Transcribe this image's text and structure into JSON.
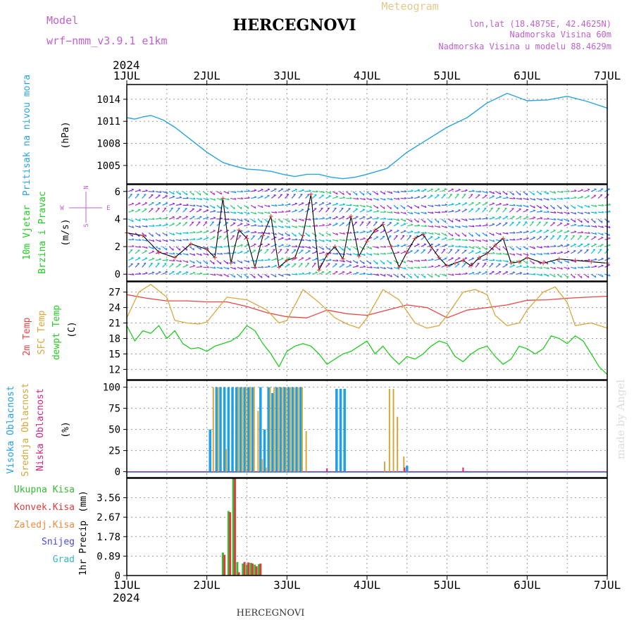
{
  "header": {
    "model_label": "Model",
    "model_name": "wrf−nmm_v3.9.1  e1km",
    "title": "HERCEGNOVI",
    "meteogram_label": "Meteogram",
    "lonlat": "lon,lat (18.4875E, 42.4625N)",
    "elevation": "Nadmorska Visina 60m",
    "model_elevation": "Nadmorska Visina u modelu 88.4629m",
    "footer_station": "HERCEGNOVI",
    "credit": "made by Angel"
  },
  "colors": {
    "pressure": "#2aa3e0",
    "temp2m": "#e84545",
    "sfc": "#dba63c",
    "dewpt": "#22cc22",
    "high_cloud": "#1e9fe6",
    "mid_cloud": "#d6a73a",
    "low_cloud": "#d02580",
    "total_precip": "#33bb33",
    "conv_precip": "#e03c3c",
    "frozen": "#ef8a3c",
    "snow": "#4a4ae0",
    "grad": "#33bbbb",
    "meta_text": "#c060d0"
  },
  "chart_data": [
    {
      "type": "line",
      "panel": "pressure",
      "year": "2024",
      "x_ticks": [
        "1JUL",
        "2JUL",
        "3JUL",
        "4JUL",
        "5JUL",
        "6JUL",
        "7JUL"
      ],
      "ylabel_title": "Pritisak na nivou mora",
      "yunit": "(hPa)",
      "ylim": [
        1002.5,
        1016
      ],
      "yticks": [
        1005,
        1008,
        1011,
        1014
      ],
      "series": [
        {
          "x": [
            0,
            0.1,
            0.2,
            0.3,
            0.45,
            0.6,
            0.8,
            1,
            1.2,
            1.35,
            1.5,
            1.65,
            1.8,
            1.95,
            2.1,
            2.25,
            2.4,
            2.55,
            2.7,
            2.85,
            3,
            3.25,
            3.5,
            3.75,
            4,
            4.25,
            4.5,
            4.75,
            5,
            5.25,
            5.5,
            5.75,
            6
          ],
          "values": [
            1011.5,
            1011.3,
            1011.6,
            1011.8,
            1011.2,
            1010.2,
            1008.5,
            1006.8,
            1005.4,
            1004.9,
            1004.5,
            1004.4,
            1004.2,
            1003.8,
            1003.5,
            1003.8,
            1003.8,
            1003.4,
            1003.2,
            1003.4,
            1003.8,
            1004.6,
            1006.8,
            1008.5,
            1010.2,
            1011.5,
            1013.5,
            1014.8,
            1013.8,
            1013.9,
            1014.4,
            1013.7,
            1012.8
          ]
        }
      ]
    },
    {
      "type": "line",
      "panel": "wind",
      "ylabel_title": "10m Vjetar",
      "ylabel_sub": "Brzina i Pravac",
      "yunit": "(m/s)",
      "compass": [
        "N",
        "S",
        "W",
        "E"
      ],
      "ylim": [
        -0.5,
        6.5
      ],
      "yticks": [
        0,
        2,
        4,
        6
      ],
      "series": [
        {
          "name": "speed",
          "x": [
            0,
            0.2,
            0.4,
            0.6,
            0.8,
            1,
            1.1,
            1.2,
            1.3,
            1.4,
            1.5,
            1.6,
            1.7,
            1.8,
            1.9,
            2,
            2.1,
            2.2,
            2.3,
            2.4,
            2.5,
            2.6,
            2.7,
            2.8,
            2.9,
            3,
            3.1,
            3.2,
            3.3,
            3.4,
            3.5,
            3.6,
            3.7,
            3.8,
            3.9,
            4,
            4.1,
            4.2,
            4.3,
            4.4,
            4.5,
            4.6,
            4.7,
            4.8,
            4.9,
            5,
            5.2,
            5.4,
            5.6,
            5.8,
            6
          ],
          "values": [
            3,
            2.8,
            1.6,
            1.2,
            2.2,
            1.8,
            1.2,
            5.5,
            0.8,
            3.2,
            2.6,
            0.5,
            2.8,
            4.2,
            0.5,
            1.0,
            1.2,
            2.8,
            5.8,
            0.3,
            1.4,
            2.0,
            1.1,
            4.2,
            1.3,
            2.4,
            3.2,
            3.6,
            2.0,
            0.5,
            1.6,
            2.6,
            2.9,
            2.0,
            1.2,
            0.6,
            0.8,
            1.0,
            0.6,
            1.2,
            1.5,
            2.1,
            2.6,
            0.8,
            0.9,
            1.2,
            0.8,
            1.1,
            1.0,
            0.9,
            0.8
          ]
        }
      ]
    },
    {
      "type": "line",
      "panel": "temperature",
      "ylabels": [
        "2m Temp",
        "SFC Temp",
        "dewpt Temp"
      ],
      "yunit": "(C)",
      "ylim": [
        10,
        29
      ],
      "yticks": [
        12,
        15,
        18,
        21,
        24,
        27
      ],
      "series": [
        {
          "name": "2m Temp",
          "x": [
            0,
            0.25,
            0.5,
            0.75,
            1,
            1.25,
            1.5,
            1.75,
            2,
            2.25,
            2.5,
            2.75,
            3,
            3.25,
            3.5,
            3.75,
            4,
            4.25,
            4.5,
            4.75,
            5,
            5.25,
            5.5,
            5.75,
            6
          ],
          "values": [
            26.5,
            25.8,
            25.3,
            25.3,
            25.1,
            25.1,
            24.2,
            23.0,
            22.2,
            22.0,
            23.5,
            22.8,
            22.5,
            23.5,
            24.5,
            24.0,
            22.0,
            23.5,
            24.0,
            24.5,
            25.4,
            25.5,
            25.8,
            26.0,
            26.2
          ]
        },
        {
          "name": "SFC Temp",
          "x": [
            0,
            0.15,
            0.3,
            0.5,
            0.6,
            0.75,
            0.9,
            1,
            1.25,
            1.5,
            1.75,
            1.9,
            2,
            2.2,
            2.4,
            2.6,
            2.75,
            2.9,
            3,
            3.2,
            3.4,
            3.6,
            3.75,
            3.9,
            4,
            4.2,
            4.35,
            4.5,
            4.6,
            4.75,
            4.9,
            5,
            5.2,
            5.35,
            5.5,
            5.6,
            5.8,
            6
          ],
          "values": [
            22.0,
            27.0,
            28.5,
            26.0,
            21.5,
            21.0,
            20.8,
            21.2,
            26.0,
            25.5,
            23.5,
            21.0,
            21.5,
            27.5,
            25.0,
            22.0,
            20.8,
            20.0,
            22.0,
            27.5,
            25.5,
            21.0,
            20.0,
            20.5,
            22.5,
            27.0,
            27.5,
            26.5,
            22.5,
            20.5,
            21.0,
            23.5,
            27.0,
            28.0,
            25.0,
            20.5,
            21.0,
            20.0
          ]
        },
        {
          "name": "dewpt Temp",
          "x": [
            0,
            0.1,
            0.2,
            0.3,
            0.4,
            0.5,
            0.6,
            0.7,
            0.8,
            0.9,
            1,
            1.1,
            1.2,
            1.3,
            1.4,
            1.5,
            1.6,
            1.7,
            1.8,
            1.9,
            2,
            2.1,
            2.2,
            2.3,
            2.4,
            2.5,
            2.6,
            2.7,
            2.8,
            2.9,
            3,
            3.1,
            3.2,
            3.3,
            3.4,
            3.5,
            3.6,
            3.7,
            3.8,
            3.9,
            4,
            4.1,
            4.2,
            4.3,
            4.4,
            4.5,
            4.6,
            4.7,
            4.8,
            4.9,
            5,
            5.1,
            5.2,
            5.3,
            5.4,
            5.5,
            5.6,
            5.7,
            5.8,
            5.9,
            6
          ],
          "values": [
            20.5,
            17.5,
            19.5,
            19.0,
            20.5,
            18.0,
            19.5,
            17.0,
            16.0,
            16.2,
            15.5,
            16.5,
            17.0,
            17.5,
            18.5,
            20.5,
            19.5,
            17.0,
            15.0,
            12.5,
            15.5,
            16.5,
            17.0,
            16.5,
            15.0,
            13.0,
            14.0,
            15.0,
            15.5,
            16.5,
            17.5,
            15.0,
            16.5,
            14.5,
            13.0,
            14.5,
            14.0,
            15.0,
            16.5,
            17.5,
            17.0,
            14.5,
            13.5,
            15.0,
            16.0,
            16.5,
            14.5,
            13.0,
            14.0,
            16.5,
            16.0,
            15.0,
            16.0,
            18.5,
            18.0,
            17.0,
            18.5,
            17.5,
            15.0,
            12.5,
            11.0
          ]
        }
      ]
    },
    {
      "type": "bar",
      "panel": "cloud",
      "ylabels": [
        "Visoka Oblacnost",
        "Srednja Oblacnost",
        "Niska Oblacnost"
      ],
      "yunit": "(%)",
      "ylim": [
        -7,
        108
      ],
      "yticks": [
        0,
        25,
        50,
        75,
        100
      ],
      "series": [
        {
          "name": "Visoka Oblacnost",
          "x": [
            1.04,
            1.12,
            1.17,
            1.22,
            1.27,
            1.32,
            1.37,
            1.42,
            1.47,
            1.52,
            1.57,
            1.67,
            1.72,
            1.77,
            1.82,
            1.87,
            1.92,
            1.97,
            2.02,
            2.07,
            2.12,
            2.17,
            2.62,
            2.67,
            2.72,
            3.5
          ],
          "values": [
            50,
            100,
            100,
            100,
            100,
            100,
            100,
            100,
            100,
            100,
            100,
            100,
            50,
            100,
            93,
            100,
            100,
            100,
            100,
            100,
            100,
            100,
            98,
            98,
            98,
            7
          ]
        },
        {
          "name": "Srednja Oblacnost",
          "x": [
            1.08,
            1.14,
            1.24,
            1.39,
            1.44,
            1.49,
            1.54,
            1.59,
            1.64,
            1.69,
            1.74,
            1.79,
            1.84,
            1.89,
            1.94,
            1.99,
            2.04,
            2.09,
            2.14,
            2.19,
            2.24,
            3.22,
            3.28,
            3.33,
            3.38,
            3.46
          ],
          "values": [
            100,
            100,
            27,
            100,
            100,
            100,
            100,
            100,
            72,
            15,
            5,
            100,
            100,
            100,
            100,
            100,
            100,
            100,
            100,
            100,
            48,
            12,
            98,
            98,
            65,
            18
          ]
        },
        {
          "name": "Niska Oblacnost",
          "x": [
            2.5,
            3.47,
            4.2
          ],
          "values": [
            4,
            5,
            5
          ]
        }
      ]
    },
    {
      "type": "bar",
      "panel": "precip",
      "ylabels": [
        "Ukupna Kisa",
        "Konvek.Kisa",
        "Zaledj.Kisa",
        "Snijeg",
        "Grad"
      ],
      "ylabel_title": "1hr Precip",
      "yunit": "(mm)",
      "ylim": [
        0,
        4.45
      ],
      "yticks": [
        0,
        0.89,
        1.78,
        2.67,
        3.56
      ],
      "series": [
        {
          "name": "Ukupna Kisa",
          "x": [
            1.2,
            1.27,
            1.33,
            1.38,
            1.45,
            1.5,
            1.55,
            1.6,
            1.65
          ],
          "values": [
            1.05,
            2.95,
            4.45,
            0.62,
            0.55,
            0.5,
            0.58,
            0.5,
            0.52
          ]
        },
        {
          "name": "Konvek.Kisa",
          "x": [
            1.22,
            1.29,
            1.35,
            1.4,
            1.47,
            1.52,
            1.57,
            1.62,
            1.67
          ],
          "values": [
            0.95,
            2.9,
            4.45,
            0.15,
            0.62,
            0.6,
            0.55,
            0.42,
            0.55
          ]
        }
      ]
    }
  ]
}
